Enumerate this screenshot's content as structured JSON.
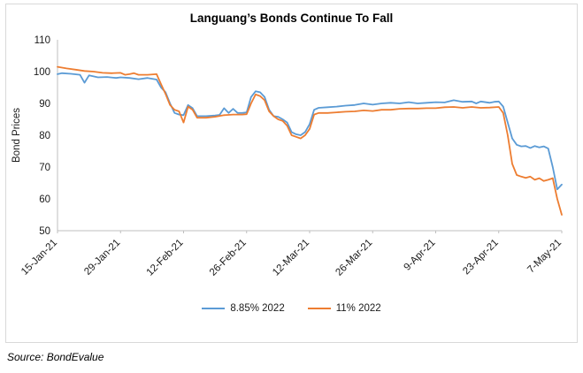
{
  "title": "Languang’s Bonds Continue To Fall",
  "source": "Source: BondEvalue",
  "chart_data": {
    "type": "line",
    "title": "Languang’s Bonds Continue To Fall",
    "xlabel": "",
    "ylabel": "Bond Prices",
    "ylim": [
      50,
      110
    ],
    "yticks": [
      50,
      60,
      70,
      80,
      90,
      100,
      110
    ],
    "x_range": [
      0,
      112
    ],
    "xtick_days": [
      0,
      14,
      28,
      42,
      56,
      70,
      84,
      98,
      112
    ],
    "xtick_labels": [
      "15-Jan-21",
      "29-Jan-21",
      "12-Feb-21",
      "26-Feb-21",
      "12-Mar-21",
      "26-Mar-21",
      "9-Apr-21",
      "23-Apr-21",
      "7-May-21"
    ],
    "grid": false,
    "legend_position": "bottom",
    "axis_color": "#bfbfbf",
    "text_color": "#1a1a1a",
    "series": [
      {
        "name": "8.85% 2022",
        "color": "#5B9BD5",
        "points": [
          [
            0,
            99.2
          ],
          [
            1,
            99.5
          ],
          [
            3,
            99.3
          ],
          [
            5,
            99.0
          ],
          [
            6,
            96.5
          ],
          [
            7,
            98.8
          ],
          [
            9,
            98.2
          ],
          [
            11,
            98.3
          ],
          [
            13,
            98.0
          ],
          [
            14,
            98.2
          ],
          [
            16,
            98.0
          ],
          [
            18,
            97.6
          ],
          [
            20,
            98.0
          ],
          [
            22,
            97.5
          ],
          [
            23,
            95.0
          ],
          [
            24,
            93.5
          ],
          [
            25,
            90.0
          ],
          [
            26,
            87.0
          ],
          [
            27,
            86.5
          ],
          [
            28,
            86.3
          ],
          [
            29,
            89.5
          ],
          [
            30,
            88.5
          ],
          [
            31,
            86.0
          ],
          [
            33,
            86.0
          ],
          [
            35,
            86.2
          ],
          [
            36,
            86.4
          ],
          [
            37,
            88.5
          ],
          [
            38,
            87.0
          ],
          [
            39,
            88.3
          ],
          [
            40,
            87.0
          ],
          [
            41,
            87.0
          ],
          [
            42,
            87.2
          ],
          [
            43,
            92.0
          ],
          [
            44,
            93.8
          ],
          [
            45,
            93.5
          ],
          [
            46,
            92.0
          ],
          [
            47,
            88.0
          ],
          [
            48,
            86.0
          ],
          [
            49,
            85.8
          ],
          [
            50,
            85.0
          ],
          [
            51,
            84.0
          ],
          [
            52,
            81.0
          ],
          [
            53,
            80.3
          ],
          [
            54,
            80.0
          ],
          [
            55,
            81.0
          ],
          [
            56,
            83.5
          ],
          [
            57,
            88.0
          ],
          [
            58,
            88.6
          ],
          [
            60,
            88.8
          ],
          [
            62,
            89.0
          ],
          [
            64,
            89.3
          ],
          [
            66,
            89.5
          ],
          [
            68,
            90.0
          ],
          [
            70,
            89.6
          ],
          [
            72,
            90.0
          ],
          [
            74,
            90.2
          ],
          [
            76,
            90.0
          ],
          [
            78,
            90.4
          ],
          [
            80,
            90.0
          ],
          [
            82,
            90.2
          ],
          [
            84,
            90.4
          ],
          [
            86,
            90.3
          ],
          [
            88,
            91.0
          ],
          [
            90,
            90.5
          ],
          [
            92,
            90.6
          ],
          [
            93,
            90.0
          ],
          [
            94,
            90.6
          ],
          [
            96,
            90.2
          ],
          [
            97,
            90.5
          ],
          [
            98,
            90.6
          ],
          [
            99,
            89.0
          ],
          [
            100,
            84.0
          ],
          [
            101,
            79.0
          ],
          [
            102,
            77.0
          ],
          [
            103,
            76.5
          ],
          [
            104,
            76.6
          ],
          [
            105,
            76.0
          ],
          [
            106,
            76.6
          ],
          [
            107,
            76.2
          ],
          [
            108,
            76.5
          ],
          [
            109,
            75.8
          ],
          [
            110,
            70.0
          ],
          [
            111,
            63.0
          ],
          [
            112,
            64.5
          ]
        ]
      },
      {
        "name": "11% 2022",
        "color": "#ED7D31",
        "points": [
          [
            0,
            101.5
          ],
          [
            2,
            101.0
          ],
          [
            4,
            100.6
          ],
          [
            6,
            100.2
          ],
          [
            8,
            100.0
          ],
          [
            10,
            99.6
          ],
          [
            12,
            99.5
          ],
          [
            14,
            99.6
          ],
          [
            15,
            99.0
          ],
          [
            16,
            99.2
          ],
          [
            17,
            99.5
          ],
          [
            18,
            99.0
          ],
          [
            20,
            99.0
          ],
          [
            22,
            99.2
          ],
          [
            23,
            96.0
          ],
          [
            24,
            93.0
          ],
          [
            25,
            89.5
          ],
          [
            26,
            88.0
          ],
          [
            27,
            87.5
          ],
          [
            28,
            84.0
          ],
          [
            29,
            89.0
          ],
          [
            30,
            88.0
          ],
          [
            31,
            85.5
          ],
          [
            33,
            85.5
          ],
          [
            35,
            85.8
          ],
          [
            37,
            86.3
          ],
          [
            39,
            86.5
          ],
          [
            41,
            86.5
          ],
          [
            42,
            86.6
          ],
          [
            43,
            90.0
          ],
          [
            44,
            92.8
          ],
          [
            45,
            92.3
          ],
          [
            46,
            91.0
          ],
          [
            47,
            87.5
          ],
          [
            48,
            86.0
          ],
          [
            49,
            85.0
          ],
          [
            50,
            84.5
          ],
          [
            51,
            83.0
          ],
          [
            52,
            80.0
          ],
          [
            53,
            79.5
          ],
          [
            54,
            79.0
          ],
          [
            55,
            80.0
          ],
          [
            56,
            82.0
          ],
          [
            57,
            86.5
          ],
          [
            58,
            87.0
          ],
          [
            60,
            87.0
          ],
          [
            62,
            87.2
          ],
          [
            64,
            87.4
          ],
          [
            66,
            87.5
          ],
          [
            68,
            87.8
          ],
          [
            70,
            87.6
          ],
          [
            72,
            88.0
          ],
          [
            74,
            88.0
          ],
          [
            76,
            88.3
          ],
          [
            78,
            88.4
          ],
          [
            80,
            88.4
          ],
          [
            82,
            88.5
          ],
          [
            84,
            88.5
          ],
          [
            86,
            88.8
          ],
          [
            88,
            88.9
          ],
          [
            90,
            88.6
          ],
          [
            92,
            88.9
          ],
          [
            94,
            88.6
          ],
          [
            96,
            88.7
          ],
          [
            98,
            88.9
          ],
          [
            99,
            87.0
          ],
          [
            100,
            80.0
          ],
          [
            101,
            71.0
          ],
          [
            102,
            67.5
          ],
          [
            103,
            67.0
          ],
          [
            104,
            66.6
          ],
          [
            105,
            67.0
          ],
          [
            106,
            66.0
          ],
          [
            107,
            66.5
          ],
          [
            108,
            65.6
          ],
          [
            109,
            66.0
          ],
          [
            110,
            66.5
          ],
          [
            111,
            60.0
          ],
          [
            112,
            55.0
          ]
        ]
      }
    ]
  }
}
